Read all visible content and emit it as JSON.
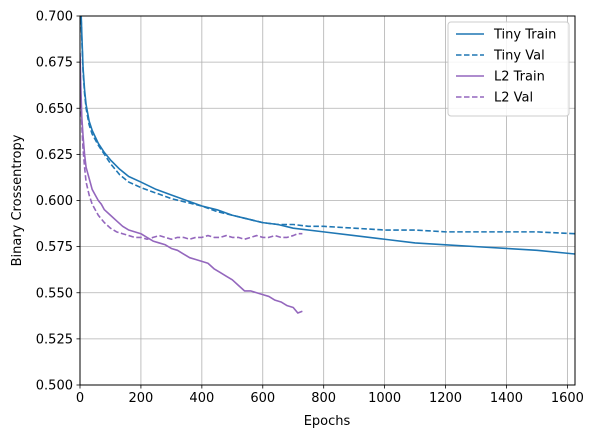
{
  "chart_data": {
    "type": "line",
    "xlabel": "Epochs",
    "ylabel": "Binary Crossentropy",
    "xlim": [
      0,
      1625
    ],
    "ylim": [
      0.5,
      0.7
    ],
    "xticks": [
      0,
      200,
      400,
      600,
      800,
      1000,
      1200,
      1400,
      1600
    ],
    "xtick_labels": [
      "0",
      "200",
      "400",
      "600",
      "800",
      "1000",
      "1200",
      "1400",
      "1600"
    ],
    "yticks": [
      0.5,
      0.525,
      0.55,
      0.575,
      0.6,
      0.625,
      0.65,
      0.675,
      0.7
    ],
    "ytick_labels": [
      "0.500",
      "0.525",
      "0.550",
      "0.575",
      "0.600",
      "0.625",
      "0.650",
      "0.675",
      "0.700"
    ],
    "grid": true,
    "legend_position": "top-right",
    "series": [
      {
        "name": "Tiny Train",
        "color": "#1f77b4",
        "style": "solid",
        "x": [
          0,
          3,
          6,
          10,
          15,
          20,
          30,
          40,
          60,
          80,
          100,
          130,
          160,
          200,
          250,
          300,
          350,
          400,
          450,
          500,
          550,
          600,
          650,
          700,
          800,
          900,
          1000,
          1100,
          1200,
          1300,
          1400,
          1500,
          1625
        ],
        "y": [
          0.72,
          0.705,
          0.69,
          0.672,
          0.66,
          0.652,
          0.643,
          0.638,
          0.631,
          0.626,
          0.622,
          0.617,
          0.613,
          0.61,
          0.606,
          0.603,
          0.6,
          0.597,
          0.595,
          0.592,
          0.59,
          0.588,
          0.587,
          0.585,
          0.583,
          0.581,
          0.579,
          0.577,
          0.576,
          0.575,
          0.574,
          0.573,
          0.571
        ]
      },
      {
        "name": "Tiny Val",
        "color": "#1f77b4",
        "style": "dashed",
        "x": [
          0,
          3,
          6,
          10,
          15,
          20,
          30,
          40,
          60,
          80,
          100,
          130,
          160,
          200,
          250,
          300,
          350,
          400,
          450,
          500,
          550,
          600,
          650,
          700,
          750,
          800,
          900,
          1000,
          1100,
          1200,
          1300,
          1400,
          1500,
          1625
        ],
        "y": [
          0.72,
          0.703,
          0.687,
          0.67,
          0.658,
          0.65,
          0.641,
          0.636,
          0.63,
          0.625,
          0.62,
          0.614,
          0.61,
          0.607,
          0.604,
          0.601,
          0.599,
          0.597,
          0.594,
          0.592,
          0.59,
          0.588,
          0.587,
          0.587,
          0.586,
          0.586,
          0.585,
          0.584,
          0.584,
          0.583,
          0.583,
          0.583,
          0.583,
          0.582
        ]
      },
      {
        "name": "L2 Train",
        "color": "#9467bd",
        "style": "solid",
        "x": [
          0,
          3,
          6,
          10,
          15,
          20,
          30,
          40,
          50,
          60,
          70,
          80,
          100,
          120,
          140,
          160,
          180,
          200,
          220,
          240,
          260,
          280,
          300,
          320,
          340,
          360,
          380,
          400,
          420,
          440,
          460,
          480,
          500,
          520,
          540,
          560,
          580,
          600,
          620,
          640,
          660,
          680,
          700,
          715,
          730
        ],
        "y": [
          0.68,
          0.66,
          0.645,
          0.635,
          0.625,
          0.618,
          0.612,
          0.606,
          0.603,
          0.6,
          0.598,
          0.595,
          0.592,
          0.589,
          0.586,
          0.584,
          0.583,
          0.582,
          0.58,
          0.578,
          0.577,
          0.576,
          0.574,
          0.573,
          0.571,
          0.569,
          0.568,
          0.567,
          0.566,
          0.563,
          0.561,
          0.559,
          0.557,
          0.554,
          0.551,
          0.551,
          0.55,
          0.549,
          0.548,
          0.546,
          0.545,
          0.543,
          0.542,
          0.539,
          0.54
        ]
      },
      {
        "name": "L2 Val",
        "color": "#9467bd",
        "style": "dashed",
        "x": [
          0,
          3,
          6,
          10,
          15,
          20,
          30,
          40,
          50,
          60,
          70,
          80,
          100,
          120,
          140,
          160,
          180,
          200,
          220,
          240,
          260,
          280,
          300,
          320,
          340,
          360,
          380,
          400,
          420,
          440,
          460,
          480,
          500,
          520,
          540,
          560,
          580,
          600,
          620,
          640,
          660,
          680,
          700,
          715,
          730
        ],
        "y": [
          0.67,
          0.655,
          0.64,
          0.628,
          0.618,
          0.61,
          0.603,
          0.598,
          0.595,
          0.592,
          0.59,
          0.588,
          0.585,
          0.583,
          0.582,
          0.581,
          0.58,
          0.58,
          0.579,
          0.58,
          0.581,
          0.58,
          0.579,
          0.58,
          0.58,
          0.579,
          0.58,
          0.58,
          0.581,
          0.58,
          0.58,
          0.581,
          0.58,
          0.58,
          0.579,
          0.58,
          0.581,
          0.58,
          0.58,
          0.581,
          0.58,
          0.58,
          0.581,
          0.582,
          0.582
        ]
      }
    ]
  }
}
